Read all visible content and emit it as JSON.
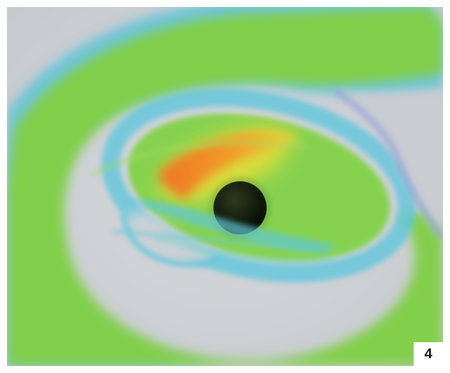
{
  "figure": {
    "panel_number": "4"
  },
  "colors": {
    "background_gray": "#cfd2d6",
    "disk_green": "#7fcf4a",
    "edge_cyan": "#4fc7e6",
    "hot_orange": "#f07a22",
    "warm_yellow": "#e8e03a",
    "black_hole": "#111a0c"
  }
}
